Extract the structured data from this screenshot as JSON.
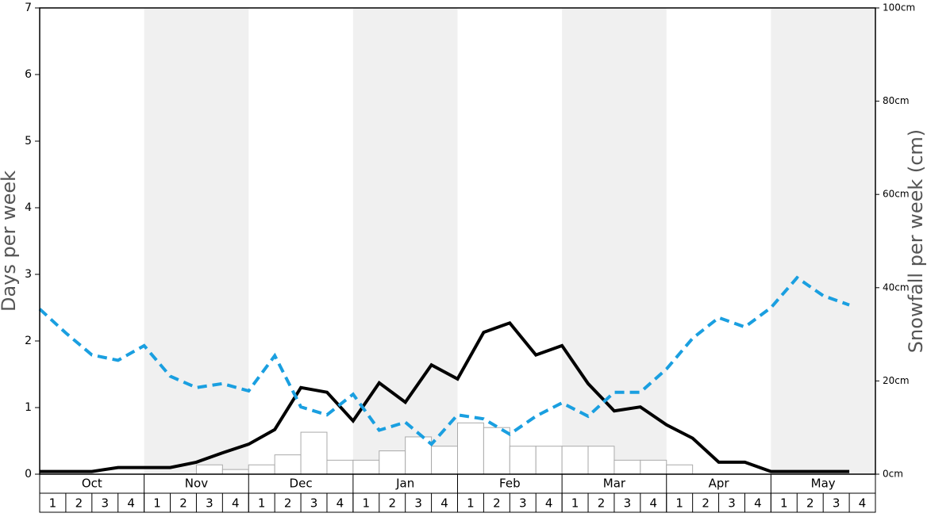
{
  "chart_data": {
    "type": "bar-line",
    "y_label": "Days per week",
    "y2_label": "Snowfall per week (cm)",
    "categories": [
      "1",
      "2",
      "3",
      "4",
      "1",
      "2",
      "3",
      "4",
      "1",
      "2",
      "3",
      "4",
      "1",
      "2",
      "3",
      "4",
      "1",
      "2",
      "3",
      "4",
      "1",
      "2",
      "3",
      "4",
      "1",
      "2",
      "3",
      "4",
      "1",
      "2",
      "3",
      "4"
    ],
    "months": [
      "Oct",
      "Nov",
      "Dec",
      "Jan",
      "Feb",
      "Mar",
      "Apr",
      "May"
    ],
    "ylim": [
      0,
      7
    ],
    "yticks": [
      0,
      1,
      2,
      3,
      4,
      5,
      6,
      7
    ],
    "y2lim": [
      0,
      100
    ],
    "y2ticks": [
      {
        "value": 0,
        "label": "0cm"
      },
      {
        "value": 20,
        "label": "20cm"
      },
      {
        "value": 40,
        "label": "40cm"
      },
      {
        "value": 60,
        "label": "60cm"
      },
      {
        "value": 80,
        "label": "80cm"
      },
      {
        "value": 100,
        "label": "100cm"
      }
    ],
    "series": [
      {
        "kind": "bar",
        "color": "#ffffff",
        "values": [
          0,
          0,
          0,
          0,
          0,
          0,
          0.14,
          0.07,
          0.14,
          0.29,
          0.63,
          0.21,
          0.21,
          0.35,
          0.56,
          0.42,
          0.77,
          0.7,
          0.42,
          0.42,
          0.42,
          0.42,
          0.21,
          0.21,
          0.14,
          0,
          0,
          0,
          0,
          0,
          0,
          0
        ]
      },
      {
        "kind": "line",
        "color": "#000000",
        "values": [
          0.04,
          0.04,
          0.04,
          0.1,
          0.1,
          0.1,
          0.18,
          0.32,
          0.45,
          0.67,
          1.3,
          1.23,
          0.8,
          1.37,
          1.08,
          1.64,
          1.43,
          2.13,
          2.27,
          1.79,
          1.93,
          1.36,
          0.95,
          1.01,
          0.74,
          0.54,
          0.18,
          0.18,
          0.04,
          0.04,
          0.04,
          0.04
        ]
      },
      {
        "kind": "dashed-line",
        "color": "#1a9fe0",
        "values": [
          2.48,
          2.12,
          1.79,
          1.71,
          1.93,
          1.47,
          1.3,
          1.36,
          1.25,
          1.78,
          1.01,
          0.89,
          1.2,
          0.66,
          0.78,
          0.45,
          0.89,
          0.83,
          0.6,
          0.87,
          1.07,
          0.87,
          1.23,
          1.23,
          1.58,
          2.04,
          2.35,
          2.21,
          2.5,
          2.95,
          2.68,
          2.54
        ]
      }
    ]
  }
}
